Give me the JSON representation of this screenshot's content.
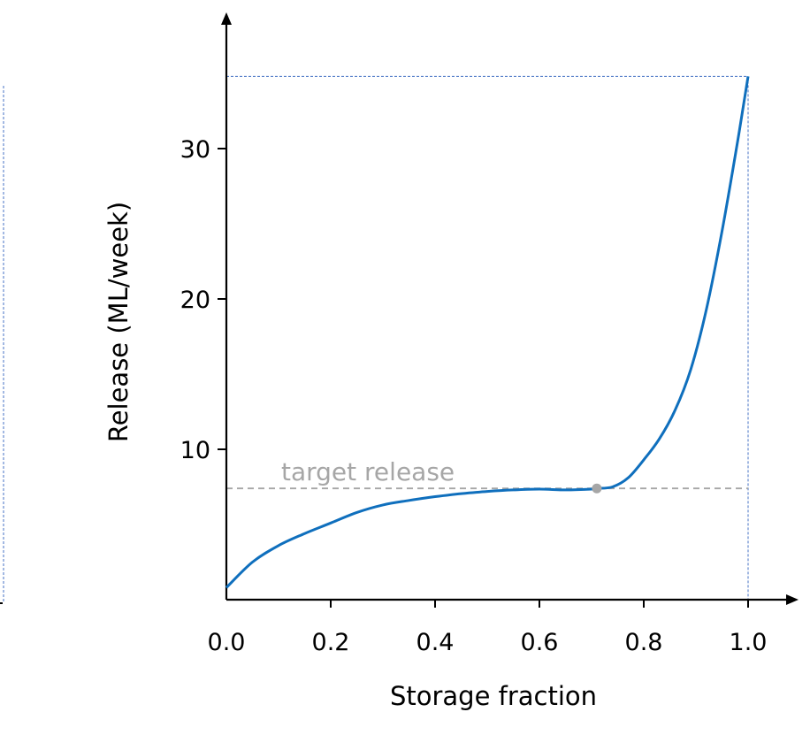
{
  "chart_data": {
    "type": "line",
    "title": "",
    "xlabel": "Storage fraction",
    "ylabel": "Release (ML/week)",
    "xlim": [
      0,
      1.0
    ],
    "ylim": [
      0,
      37.5
    ],
    "x_ticks": [
      "0.0",
      "0.2",
      "0.4",
      "0.6",
      "0.8",
      "1.0"
    ],
    "y_ticks": [
      "10",
      "20",
      "30"
    ],
    "grid": false,
    "legend": "none",
    "series": [
      {
        "color": "#0f6fbd",
        "x": [
          0.0,
          0.05,
          0.1,
          0.15,
          0.2,
          0.25,
          0.3,
          0.35,
          0.4,
          0.45,
          0.5,
          0.55,
          0.6,
          0.65,
          0.7,
          0.71,
          0.74,
          0.77,
          0.8,
          0.83,
          0.86,
          0.89,
          0.92,
          0.95,
          0.98,
          1.0
        ],
        "y": [
          0.8,
          2.5,
          3.6,
          4.4,
          5.1,
          5.8,
          6.3,
          6.6,
          6.85,
          7.05,
          7.2,
          7.3,
          7.35,
          7.3,
          7.35,
          7.4,
          7.5,
          8.1,
          9.3,
          10.7,
          12.6,
          15.3,
          19.3,
          24.5,
          30.5,
          34.8
        ]
      }
    ],
    "annotations": [
      {
        "text": "target release",
        "type": "hline",
        "y": 7.4,
        "color": "#a6a6a6"
      },
      {
        "type": "point",
        "x": 0.71,
        "y": 7.4,
        "color": "#a6a6a6"
      },
      {
        "type": "guide-hline",
        "y": 34.8,
        "color": "#4472c4"
      },
      {
        "type": "guide-vline",
        "x": 1.0,
        "color": "#4472c4"
      }
    ],
    "colors": {
      "axis": "#000000",
      "series": "#0f6fbd",
      "target": "#a6a6a6",
      "guide": "#4472c4"
    }
  }
}
